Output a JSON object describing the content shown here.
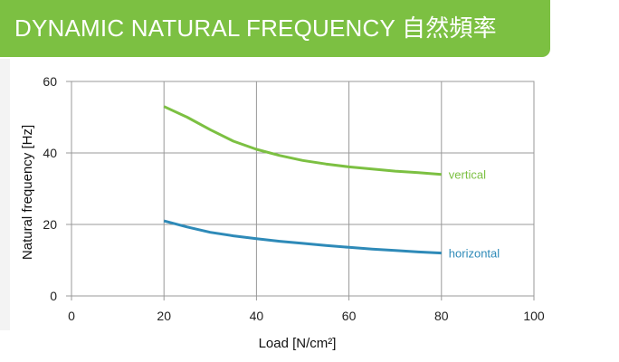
{
  "chart_data": {
    "type": "line",
    "title": "DYNAMIC NATURAL FREQUENCY 自然頻率",
    "xlabel": "Load [N/cm²]",
    "ylabel": "Natural frequency [Hz]",
    "xlim": [
      0,
      100
    ],
    "ylim": [
      0,
      60
    ],
    "xticks": [
      0,
      20,
      40,
      60,
      80,
      100
    ],
    "yticks": [
      0,
      20,
      40,
      60
    ],
    "grid": true,
    "series": [
      {
        "name": "vertical",
        "color": "#7cc042",
        "x": [
          20,
          25,
          30,
          35,
          40,
          45,
          50,
          55,
          60,
          65,
          70,
          75,
          80
        ],
        "y": [
          53,
          50,
          46.5,
          43.3,
          41,
          39.3,
          37.9,
          36.9,
          36.1,
          35.5,
          34.9,
          34.5,
          34
        ]
      },
      {
        "name": "horizontal",
        "color": "#2e8ab8",
        "x": [
          20,
          25,
          30,
          35,
          40,
          45,
          50,
          55,
          60,
          65,
          70,
          75,
          80
        ],
        "y": [
          21,
          19.3,
          17.8,
          16.8,
          16,
          15.3,
          14.7,
          14.1,
          13.6,
          13.1,
          12.7,
          12.3,
          12
        ]
      }
    ]
  }
}
